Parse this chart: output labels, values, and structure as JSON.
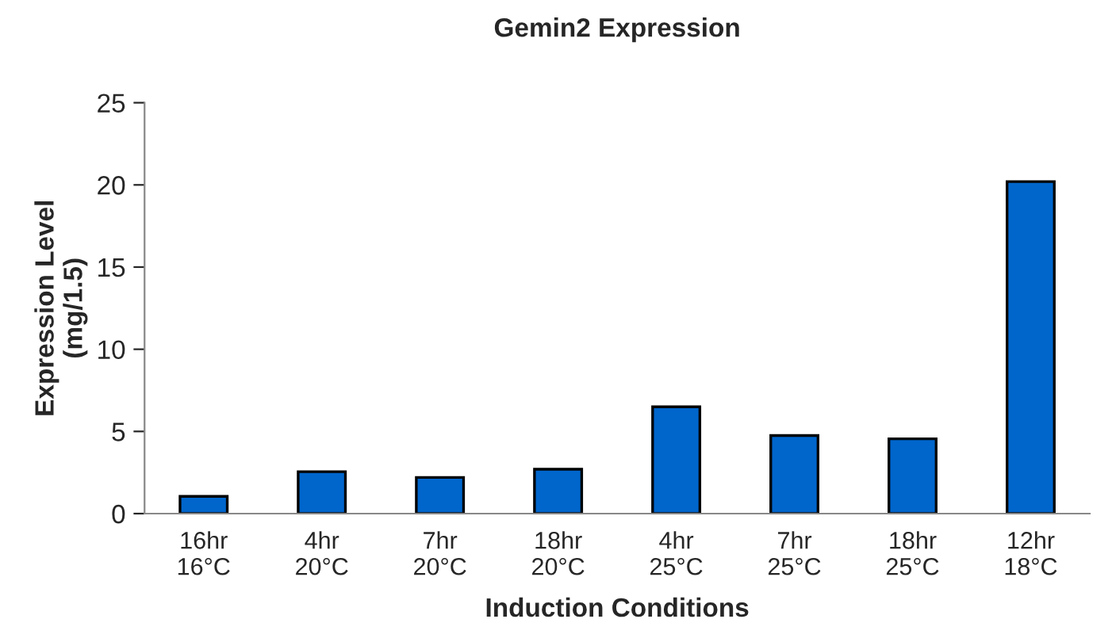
{
  "chart_data": {
    "type": "bar",
    "title": "Gemin2 Expression",
    "xlabel": "Induction Conditions",
    "ylabel": "Expression Level\n(mg/1.5)",
    "categories": [
      "16hr\n16°C",
      "4hr\n20°C",
      "7hr\n20°C",
      "18hr\n20°C",
      "4hr\n25°C",
      "7hr\n25°C",
      "18hr\n25°C",
      "12hr\n18°C"
    ],
    "values": [
      1.05,
      2.55,
      2.2,
      2.7,
      6.5,
      4.75,
      4.55,
      20.2
    ],
    "color": "#0066cc",
    "ylim": [
      0,
      25
    ],
    "yticks": [
      0,
      5,
      10,
      15,
      20,
      25
    ],
    "grid": false,
    "legend": false
  }
}
